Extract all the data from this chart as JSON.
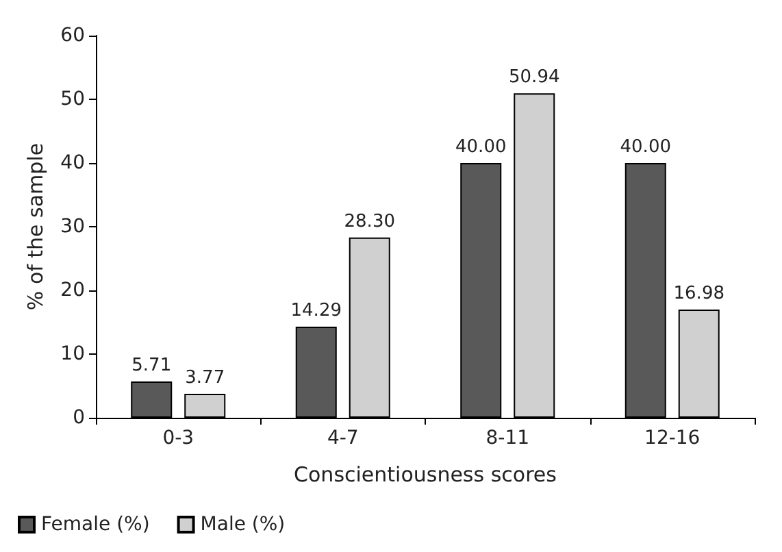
{
  "chart_data": {
    "type": "bar",
    "xlabel": "Conscientiousness scores",
    "ylabel": "% of the sample",
    "categories": [
      "0-3",
      "4-7",
      "8-11",
      "12-16"
    ],
    "series": [
      {
        "name": "Female (%)",
        "color": "#595959",
        "values": [
          5.71,
          14.29,
          40.0,
          40.0
        ],
        "value_labels": [
          "5.71",
          "14.29",
          "40.00",
          "40.00"
        ]
      },
      {
        "name": "Male (%)",
        "color": "#d0d0d0",
        "values": [
          3.77,
          28.3,
          50.94,
          16.98
        ],
        "value_labels": [
          "3.77",
          "28.30",
          "50.94",
          "16.98"
        ]
      }
    ],
    "ylim": [
      0,
      60
    ],
    "yticks": [
      0,
      10,
      20,
      30,
      40,
      50,
      60
    ],
    "grid": false,
    "legend": "bottom left"
  }
}
